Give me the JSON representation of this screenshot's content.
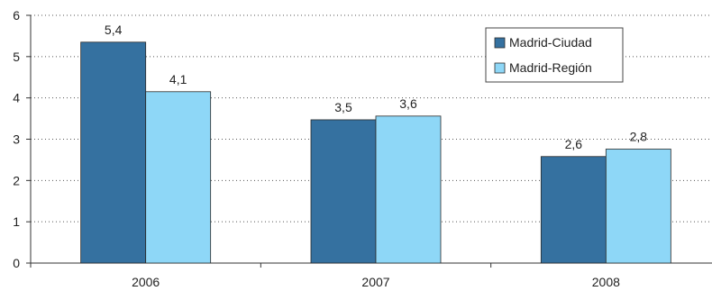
{
  "chart_data": {
    "type": "bar",
    "title": "",
    "xlabel": "",
    "ylabel": "",
    "categories": [
      "2006",
      "2007",
      "2008"
    ],
    "series": [
      {
        "name": "Madrid-Ciudad",
        "color": "#3571a0",
        "values": [
          5.35,
          3.47,
          2.58
        ],
        "labels": [
          "5,4",
          "3,5",
          "2,6"
        ]
      },
      {
        "name": "Madrid-Región",
        "color": "#8ed7f7",
        "values": [
          4.15,
          3.56,
          2.76
        ],
        "labels": [
          "4,1",
          "3,6",
          "2,8"
        ]
      }
    ],
    "ylim": [
      0,
      6
    ],
    "yticks": [
      0,
      1,
      2,
      3,
      4,
      5,
      6
    ],
    "grid": true,
    "legend_position": "top-right"
  }
}
